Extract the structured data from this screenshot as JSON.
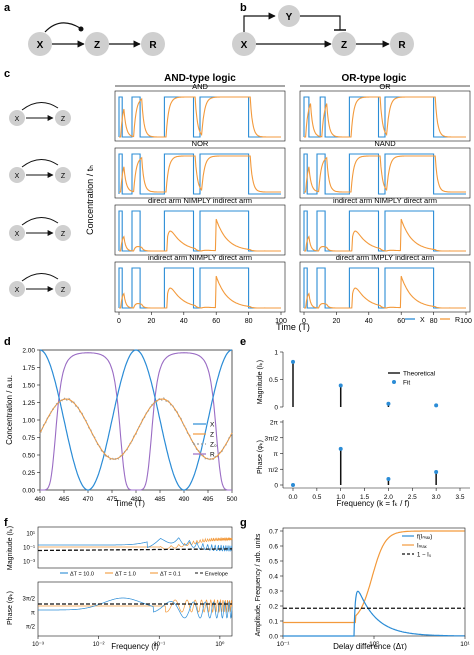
{
  "panels": {
    "a": {
      "letter": "a",
      "nodes": [
        "X",
        "Z",
        "R"
      ]
    },
    "b": {
      "letter": "b",
      "nodes": [
        "Y",
        "X",
        "Z",
        "R"
      ]
    },
    "c": {
      "letter": "c",
      "and_header": "AND-type logic",
      "or_header": "OR-type logic",
      "ylabel": "Concentration / tₕ",
      "xlabel": "Time (T)",
      "rows": [
        {
          "left": "AND",
          "right": "OR"
        },
        {
          "left": "NOR",
          "right": "NAND"
        },
        {
          "left": "direct arm NIMPLY indirect arm",
          "right": "indirect arm NIMPLY direct arm"
        },
        {
          "left": "indirect arm NIMPLY direct arm",
          "right": "direct arm IMPLY indirect arm"
        }
      ],
      "xticks": [
        "0",
        "20",
        "40",
        "60",
        "80",
        "100"
      ],
      "legend": [
        {
          "name": "X",
          "color": "#2b8cd6"
        },
        {
          "name": "R",
          "color": "#f39a3c"
        }
      ]
    },
    "d": {
      "letter": "d",
      "ylabel": "Concentration / a.u.",
      "xlabel": "Time (T)",
      "yticks": [
        "0.00",
        "0.25",
        "0.50",
        "0.75",
        "1.00",
        "1.25",
        "1.50",
        "1.75",
        "2.00"
      ],
      "xticks": [
        "460",
        "465",
        "470",
        "475",
        "480",
        "485",
        "490",
        "495",
        "500"
      ],
      "legend": [
        "X",
        "Z",
        "Z₀",
        "R"
      ]
    },
    "e": {
      "letter": "e",
      "top_ylabel": "Magnitude (Iₖ)",
      "bottom_ylabel": "Phase (φₖ)",
      "xlabel": "Frequency (k = fₖ / f)",
      "top_yticks": [
        "0",
        "0.5",
        "1"
      ],
      "bottom_yticks": [
        "0",
        "π/2",
        "π",
        "3π/2",
        "2π"
      ],
      "xticks": [
        "0.0",
        "0.5",
        "1.0",
        "1.5",
        "2.0",
        "2.5",
        "3.0",
        "3.5"
      ],
      "legend": [
        "Theoretical",
        "Fit"
      ]
    },
    "f": {
      "letter": "f",
      "top_ylabel": "Magnitude (Iₖ)",
      "bottom_ylabel": "Phase (φₖ)",
      "xlabel": "Frequency (f)",
      "top_yticks": [
        "10¹",
        "10⁻¹",
        "10⁻³"
      ],
      "bottom_yticks": [
        "π/2",
        "π",
        "3π/2"
      ],
      "xticks": [
        "10⁻³",
        "10⁻²",
        "10⁻¹",
        "10⁰"
      ],
      "legend": [
        "ΔT = 10.0",
        "ΔT = 1.0",
        "ΔT = 0.1",
        "Envelope"
      ]
    },
    "g": {
      "letter": "g",
      "ylabel": "Amplitude, Frequency / arb. units",
      "xlabel": "Delay difference (Δτ)",
      "yticks": [
        "0.0",
        "0.1",
        "0.2",
        "0.3",
        "0.4",
        "0.5",
        "0.6",
        "0.7"
      ],
      "xticks": [
        "10⁻¹",
        "10⁰",
        "10¹"
      ],
      "legend": [
        "f(Iₘₐₓ)",
        "Iₘₐₓ",
        "1 − I₀"
      ]
    }
  },
  "colors": {
    "blue": "#2b8cd6",
    "orange": "#f39a3c",
    "purple": "#9a6cc4",
    "node": "#cfcfcf",
    "black": "#111111"
  }
}
